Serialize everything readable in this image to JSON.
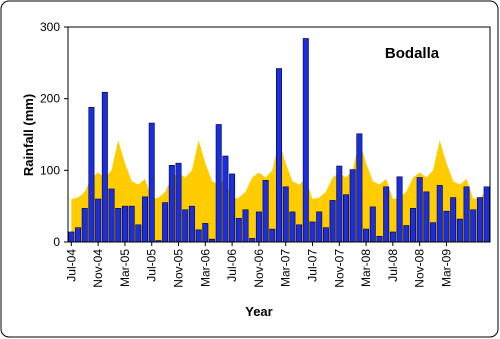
{
  "chart_data": {
    "type": "bar",
    "title": "Bodalla",
    "x_label": "Year",
    "y_label": "Rainfall (mm)",
    "categories": [
      "Jul-04",
      null,
      null,
      null,
      "Nov-04",
      null,
      null,
      null,
      "Mar-05",
      null,
      null,
      null,
      "Jul-05",
      null,
      null,
      null,
      "Nov-05",
      null,
      null,
      null,
      "Mar-06",
      null,
      null,
      null,
      "Jul-06",
      null,
      null,
      null,
      "Nov-06",
      null,
      null,
      null,
      "Mar-07",
      null,
      null,
      null,
      "Jul-07",
      null,
      null,
      null,
      "Nov-07",
      null,
      null,
      null,
      "Mar-08",
      null,
      null,
      null,
      "Jul-08",
      null,
      null,
      null,
      "Nov-08",
      null,
      null,
      null,
      "Mar-09",
      null,
      null,
      null,
      null,
      null,
      null
    ],
    "series": [
      {
        "type": "area",
        "color": "#ffcc00",
        "values": [
          60,
          62,
          70,
          90,
          97,
          90,
          100,
          142,
          110,
          85,
          80,
          88,
          60,
          62,
          70,
          90,
          97,
          90,
          100,
          142,
          110,
          85,
          80,
          88,
          60,
          62,
          70,
          90,
          97,
          90,
          100,
          142,
          110,
          85,
          80,
          88,
          60,
          62,
          70,
          90,
          97,
          90,
          100,
          142,
          110,
          85,
          80,
          88,
          60,
          62,
          70,
          90,
          97,
          90,
          100,
          142,
          110,
          85,
          80,
          88,
          60,
          62,
          70
        ]
      },
      {
        "type": "bar",
        "color": "#1a2ee0",
        "values": [
          14,
          20,
          47,
          188,
          60,
          209,
          74,
          47,
          50,
          50,
          24,
          63,
          166,
          2,
          55,
          107,
          110,
          45,
          50,
          17,
          26,
          4,
          164,
          120,
          95,
          33,
          45,
          5,
          42,
          86,
          18,
          242,
          77,
          42,
          24,
          284,
          28,
          42,
          20,
          58,
          106,
          66,
          101,
          151,
          18,
          49,
          8,
          77,
          14,
          91,
          23,
          47,
          90,
          70,
          27,
          79,
          43,
          62,
          32,
          77,
          45,
          62,
          77
        ]
      }
    ],
    "ylim": [
      0,
      300
    ],
    "yticks": [
      0,
      100,
      200,
      300
    ]
  }
}
